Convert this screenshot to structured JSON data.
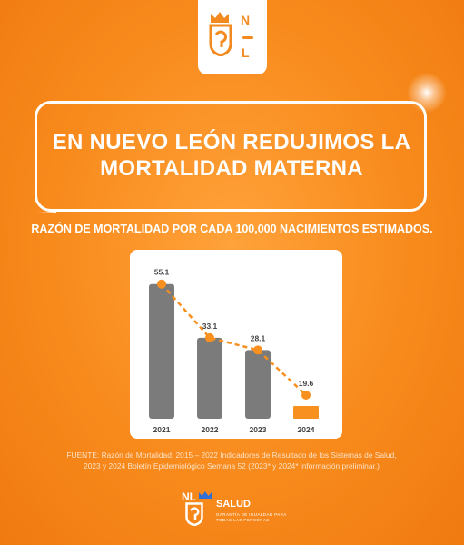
{
  "badge": {
    "letter_top": "N",
    "letter_bottom": "L"
  },
  "headline": "EN NUEVO LEÓN REDUJIMOS LA MORTALIDAD MATERNA",
  "subtitle": "RAZÓN DE MORTALIDAD POR CADA 100,000 NACIMIENTOS ESTIMADOS.",
  "chart_data": {
    "type": "bar",
    "categories": [
      "2021",
      "2022",
      "2023",
      "2024"
    ],
    "values": [
      55.1,
      33.1,
      28.1,
      19.6
    ],
    "value_labels": [
      "55.1",
      "33.1",
      "28.1",
      "19.6"
    ],
    "ylim": [
      0,
      60
    ],
    "bar_colors": [
      "#7b7b7b",
      "#7b7b7b",
      "#7b7b7b",
      "#f8901f"
    ],
    "trend_line": {
      "style": "dashed",
      "color": "#f8901f"
    },
    "grid": false
  },
  "source": "FUENTE: Razón de Mortalidad: 2015 – 2022 Indicadores de Resultado de los Sistemas de Salud, 2023 y 2024 Boletín Epidemiológico Semana 52 (2023* y 2024* información preliminar.)",
  "footer_logo": {
    "nl": "NL",
    "salud": "SALUD",
    "tagline": "GARANTÍA DE IGUALDAD PARA TODAS LAS PERSONAS"
  },
  "colors": {
    "accent": "#f8901f",
    "bar_gray": "#7b7b7b",
    "text_dark": "#444444"
  }
}
